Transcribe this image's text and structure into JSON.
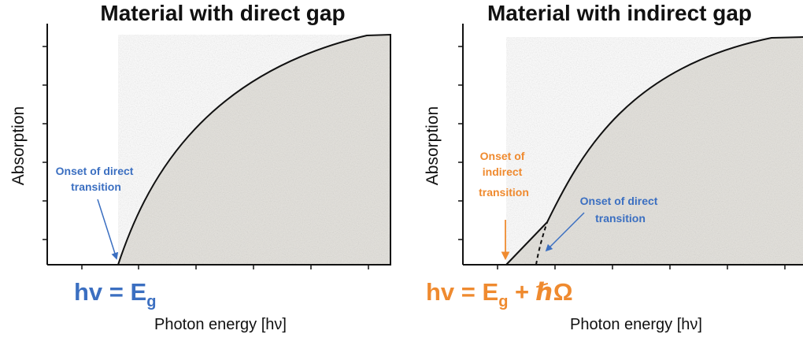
{
  "panels": [
    {
      "title": "Material with direct gap",
      "ylabel": "Absorption",
      "xlabel": "Photon energy [hν]",
      "annotation": [
        "Onset of direct",
        "transition"
      ],
      "equation": {
        "lhs": "hv = E",
        "sub": "g",
        "rhs": ""
      }
    },
    {
      "title": "Material with indirect gap",
      "ylabel": "Absorption",
      "xlabel": "Photon energy [hν]",
      "annotation_indirect": [
        "Onset of",
        "indirect",
        "transition"
      ],
      "annotation_direct": [
        "Onset of direct",
        "transition"
      ],
      "equation": {
        "lhs": "hv = E",
        "sub": "g",
        "rhs": " + ℏΩ"
      }
    }
  ],
  "colors": {
    "blue": "#3b6fc1",
    "orange": "#ef8a2f",
    "fill": "#e6e4df",
    "axis": "#111111"
  }
}
